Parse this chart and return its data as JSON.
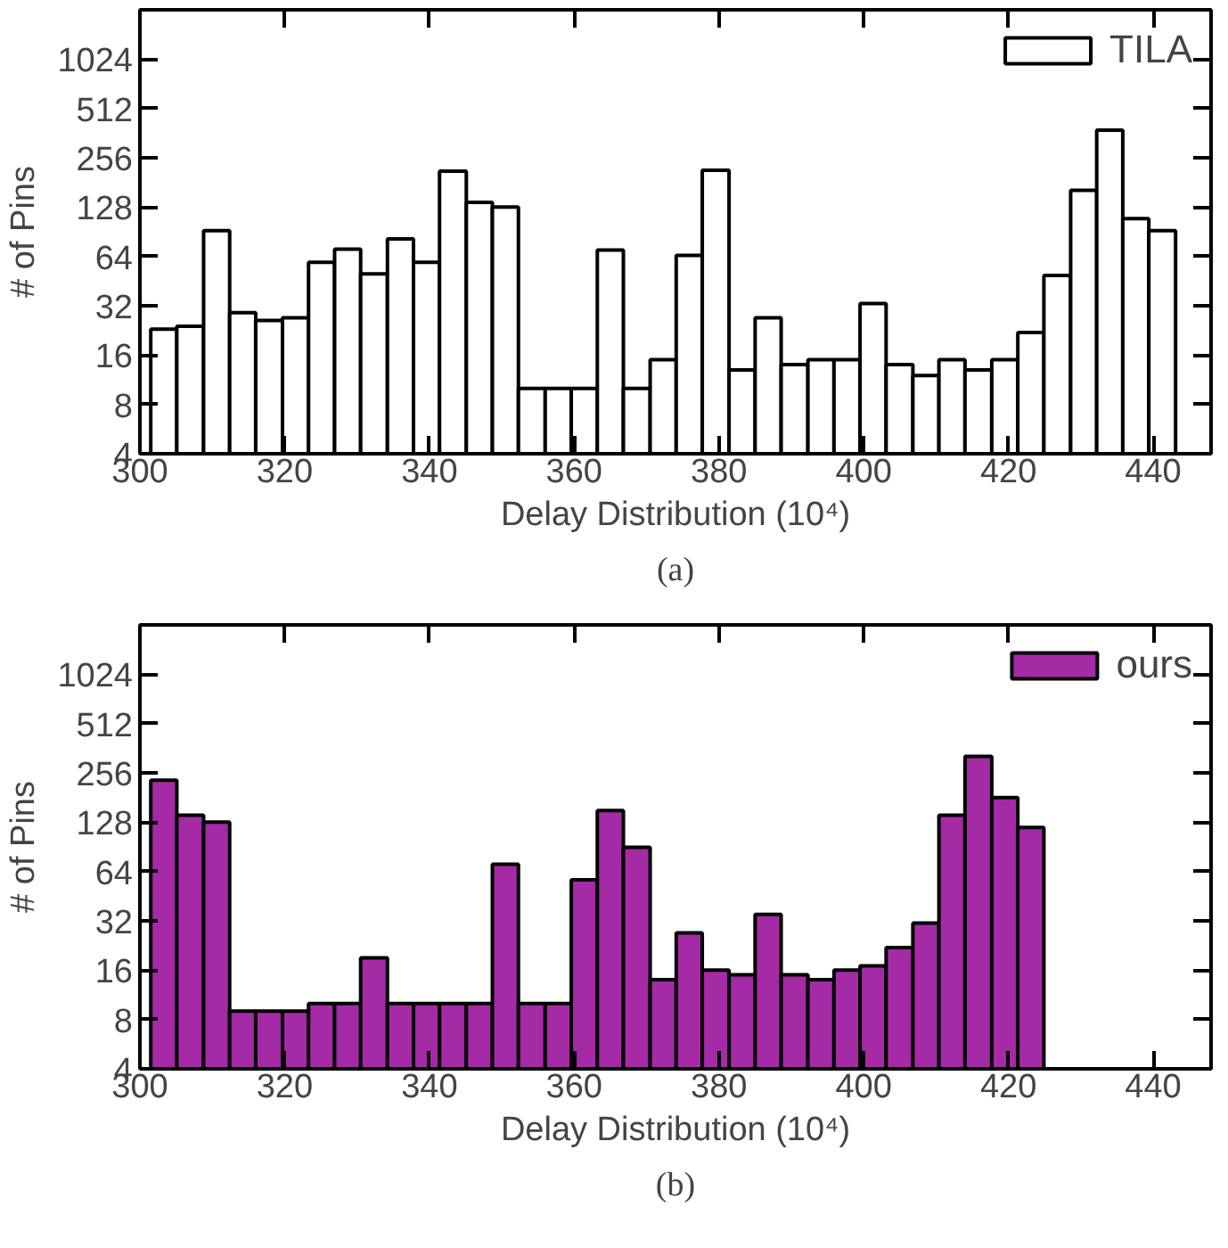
{
  "chart_data": [
    {
      "type": "histogram",
      "xlabel": "Delay Distribution (10⁴)",
      "ylabel": "# of Pins",
      "annotations": [
        "(a)"
      ],
      "log": "y",
      "legend": "top right",
      "xlim": [
        300,
        448
      ],
      "xticks": [
        300,
        320,
        340,
        360,
        380,
        400,
        420,
        440
      ],
      "ylim": [
        4,
        2048
      ],
      "yticks": [
        4,
        8,
        16,
        32,
        64,
        128,
        256,
        512,
        1024
      ],
      "bins": [
        301.5,
        305.1,
        308.8,
        312.4,
        316.0,
        319.7,
        323.3,
        326.9,
        330.5,
        334.2,
        337.8,
        341.4,
        345.1,
        348.7,
        352.3,
        356.0,
        359.6,
        363.2,
        366.8,
        370.5,
        374.1,
        377.7,
        381.4,
        385.0,
        388.6,
        392.3,
        395.9,
        399.5,
        403.1,
        406.8,
        410.4,
        414.0,
        417.7,
        421.3,
        424.9,
        428.6,
        432.2,
        435.8,
        439.4,
        443.1
      ],
      "series": [
        {
          "name": "TILA",
          "color": "#ffffff",
          "values": [
            23,
            24,
            92,
            29,
            26,
            27,
            59,
            71,
            50,
            82,
            59,
            212,
            137,
            128,
            10,
            10,
            10,
            70,
            10,
            15,
            65,
            215,
            13,
            27,
            14,
            15,
            15,
            33,
            14,
            12,
            15,
            13,
            15,
            22,
            49,
            162,
            378,
            109,
            92
          ]
        }
      ]
    },
    {
      "type": "histogram",
      "xlabel": "Delay Distribution (10⁴)",
      "ylabel": "# of Pins",
      "annotations": [
        "(b)"
      ],
      "log": "y",
      "legend": "top right",
      "xlim": [
        300,
        448
      ],
      "xticks": [
        300,
        320,
        340,
        360,
        380,
        400,
        420,
        440
      ],
      "ylim": [
        4,
        2048
      ],
      "yticks": [
        4,
        8,
        16,
        32,
        64,
        128,
        256,
        512,
        1024
      ],
      "bins": [
        301.5,
        305.1,
        308.8,
        312.4,
        316.0,
        319.7,
        323.3,
        326.9,
        330.5,
        334.2,
        337.8,
        341.4,
        345.1,
        348.7,
        352.3,
        356.0,
        359.6,
        363.2,
        366.8,
        370.5,
        374.1,
        377.7,
        381.4,
        385.0,
        388.6,
        392.3,
        395.9,
        399.5,
        403.1,
        406.8,
        410.4,
        414.0,
        417.7,
        421.3,
        424.9
      ],
      "series": [
        {
          "name": "ours",
          "color": "#a52aa5",
          "values": [
            231,
            141,
            128,
            9,
            9,
            9,
            10,
            10,
            19,
            10,
            10,
            10,
            10,
            71,
            10,
            10,
            57,
            151,
            90,
            14,
            27,
            16,
            15,
            35,
            15,
            14,
            16,
            17,
            22,
            31,
            141,
            323,
            181,
            119
          ]
        }
      ]
    }
  ]
}
